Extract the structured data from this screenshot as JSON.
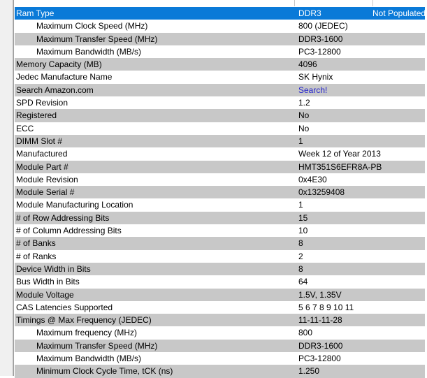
{
  "colors": {
    "header_bg": "#0a7ad8",
    "header_text": "#ffffff",
    "row_alt_bg": "#c8c8c8",
    "link": "#2222cc",
    "gutter_bg": "#f0f0f0",
    "panel_border": "#a3a3a3",
    "grid_line": "#c6c6c6"
  },
  "table": {
    "header": {
      "label": "Ram Type",
      "value": "DDR3",
      "status": "Not Populated"
    },
    "rows": [
      {
        "label": "Maximum Clock Speed (MHz)",
        "value": "800 (JEDEC)",
        "indent": true
      },
      {
        "label": "Maximum Transfer Speed (MHz)",
        "value": "DDR3-1600",
        "indent": true
      },
      {
        "label": "Maximum Bandwidth (MB/s)",
        "value": "PC3-12800",
        "indent": true
      },
      {
        "label": "Memory Capacity (MB)",
        "value": "4096"
      },
      {
        "label": "Jedec Manufacture Name",
        "value": "SK Hynix"
      },
      {
        "label": "Search Amazon.com",
        "value": "Search!",
        "link": true
      },
      {
        "label": "SPD Revision",
        "value": "1.2"
      },
      {
        "label": "Registered",
        "value": "No"
      },
      {
        "label": "ECC",
        "value": "No"
      },
      {
        "label": "DIMM Slot #",
        "value": "1"
      },
      {
        "label": "Manufactured",
        "value": "Week 12 of Year 2013"
      },
      {
        "label": "Module Part #",
        "value": "HMT351S6EFR8A-PB"
      },
      {
        "label": "Module Revision",
        "value": "0x4E30"
      },
      {
        "label": "Module Serial #",
        "value": "0x13259408"
      },
      {
        "label": "Module Manufacturing Location",
        "value": "1"
      },
      {
        "label": "# of Row Addressing Bits",
        "value": "15"
      },
      {
        "label": "# of Column Addressing Bits",
        "value": "10"
      },
      {
        "label": "# of Banks",
        "value": "8"
      },
      {
        "label": "# of Ranks",
        "value": "2"
      },
      {
        "label": "Device Width in Bits",
        "value": "8"
      },
      {
        "label": "Bus Width in Bits",
        "value": "64"
      },
      {
        "label": "Module Voltage",
        "value": "1.5V, 1.35V"
      },
      {
        "label": "CAS Latencies Supported",
        "value": "5 6 7 8 9 10 11"
      },
      {
        "label": "Timings @ Max Frequency (JEDEC)",
        "value": "11-11-11-28"
      },
      {
        "label": "Maximum frequency (MHz)",
        "value": "800",
        "indent": true
      },
      {
        "label": "Maximum Transfer Speed (MHz)",
        "value": "DDR3-1600",
        "indent": true
      },
      {
        "label": "Maximum Bandwidth (MB/s)",
        "value": "PC3-12800",
        "indent": true
      },
      {
        "label": "Minimum Clock Cycle Time, tCK (ns)",
        "value": "1.250",
        "indent": true
      }
    ]
  }
}
